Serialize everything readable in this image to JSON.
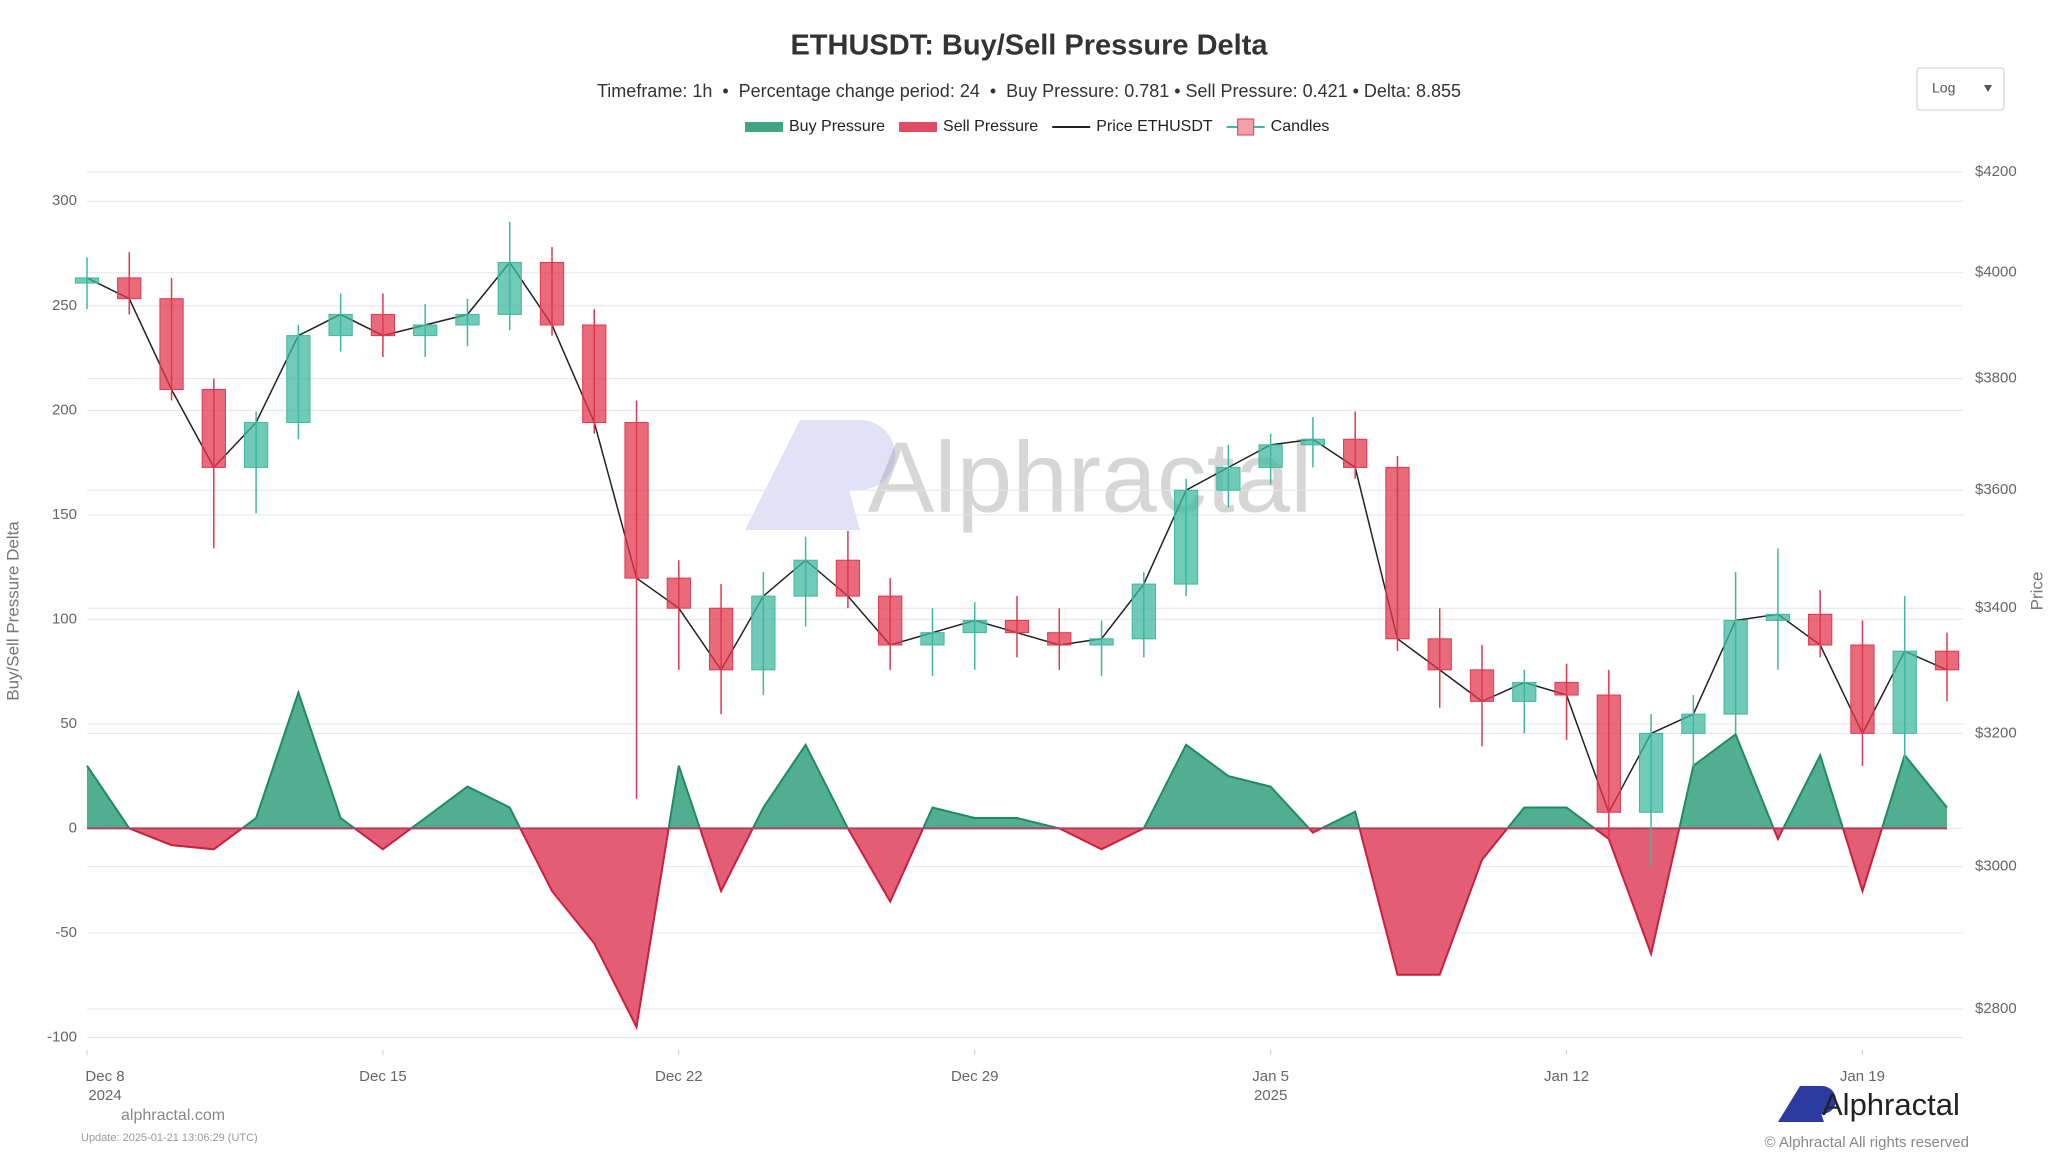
{
  "chart_data": {
    "type": "delta-area",
    "title": "ETHUSDT: Buy/Sell Pressure Delta",
    "subtitle": "Timeframe: 1h  •  Percentage change period: 24  •  Buy Pressure: 0.781 • Sell Pressure: 0.421 • Delta: 8.855",
    "y_label": "Buy/Sell Pressure Delta",
    "y2_label": "Price",
    "scale_menu": "Log",
    "y2_log": true,
    "grid": true,
    "watermark": "Alphractal",
    "brand": "Alphractal",
    "site": "alphractal.com",
    "update": "Update: 2025-01-21 13:06:29 (UTC)",
    "copyright": "© Alphractal All rights reserved",
    "legend": [
      {
        "name": "Buy Pressure",
        "color": "#3fa584"
      },
      {
        "name": "Sell Pressure",
        "color": "#e04b65"
      }
    ],
    "x": [
      "2024-12-08",
      "2024-12-09",
      "2024-12-10",
      "2024-12-11",
      "2024-12-12",
      "2024-12-13",
      "2024-12-14",
      "2024-12-15",
      "2024-12-16",
      "2024-12-17",
      "2024-12-18",
      "2024-12-19",
      "2024-12-20",
      "2024-12-21",
      "2024-12-22",
      "2024-12-23",
      "2024-12-24",
      "2024-12-25",
      "2024-12-26",
      "2024-12-27",
      "2024-12-28",
      "2024-12-29",
      "2024-12-30",
      "2024-12-31",
      "2025-01-01",
      "2025-01-02",
      "2025-01-03",
      "2025-01-04",
      "2025-01-05",
      "2025-01-06",
      "2025-01-07",
      "2025-01-08",
      "2025-01-09",
      "2025-01-10",
      "2025-01-11",
      "2025-01-12",
      "2025-01-13",
      "2025-01-14",
      "2025-01-15",
      "2025-01-16",
      "2025-01-17",
      "2025-01-18",
      "2025-01-19",
      "2025-01-20",
      "2025-01-21"
    ],
    "xlim": [
      "2024-12-08",
      "2025-01-21"
    ],
    "xticks": [
      {
        "value": "2024-12-08",
        "label": "Dec 8",
        "year": "2024"
      },
      {
        "value": "2024-12-15",
        "label": "Dec 15"
      },
      {
        "value": "2024-12-22",
        "label": "Dec 22"
      },
      {
        "value": "2024-12-29",
        "label": "Dec 29"
      },
      {
        "value": "2025-01-05",
        "label": "Jan 5",
        "year": "2025"
      },
      {
        "value": "2025-01-12",
        "label": "Jan 12"
      },
      {
        "value": "2025-01-19",
        "label": "Jan 19"
      }
    ],
    "delta": [
      30,
      0,
      -8,
      -10,
      5,
      65,
      5,
      -10,
      5,
      20,
      10,
      -30,
      -55,
      -95,
      30,
      -30,
      10,
      40,
      0,
      -35,
      10,
      5,
      5,
      0,
      -10,
      0,
      40,
      25,
      20,
      -2,
      8,
      -70,
      -70,
      -15,
      10,
      10,
      -5,
      -60,
      30,
      45,
      -5,
      35,
      -30,
      35,
      10
    ],
    "ylim": [
      -106,
      314
    ],
    "yticks": [
      -100,
      -50,
      0,
      50,
      100,
      150,
      200,
      250,
      300
    ],
    "price": {
      "name": "Price ETHUSDT",
      "color": "#222222",
      "axis": "y2",
      "values": [
        3990,
        3950,
        3780,
        3640,
        3720,
        3880,
        3920,
        3880,
        3900,
        3920,
        4020,
        3900,
        3720,
        3450,
        3400,
        3300,
        3420,
        3480,
        3420,
        3340,
        3360,
        3380,
        3360,
        3340,
        3350,
        3440,
        3600,
        3640,
        3680,
        3690,
        3640,
        3350,
        3300,
        3250,
        3280,
        3260,
        3080,
        3200,
        3230,
        3380,
        3390,
        3340,
        3200,
        3330,
        3300
      ]
    },
    "candles": {
      "name": "Candles",
      "up_color": "#3fb8a0",
      "down_color": "#e0384f",
      "axis": "y2",
      "open": [
        3980,
        3990,
        3950,
        3780,
        3640,
        3720,
        3880,
        3920,
        3880,
        3900,
        3920,
        4020,
        3900,
        3720,
        3450,
        3400,
        3300,
        3420,
        3480,
        3420,
        3340,
        3360,
        3380,
        3360,
        3340,
        3350,
        3440,
        3600,
        3640,
        3680,
        3690,
        3640,
        3350,
        3300,
        3250,
        3280,
        3260,
        3080,
        3200,
        3230,
        3380,
        3390,
        3340,
        3200,
        3330
      ],
      "high": [
        4030,
        4040,
        3990,
        3800,
        3740,
        3900,
        3960,
        3960,
        3940,
        3950,
        4100,
        4050,
        3930,
        3760,
        3480,
        3440,
        3460,
        3520,
        3530,
        3450,
        3400,
        3410,
        3420,
        3400,
        3380,
        3460,
        3620,
        3680,
        3700,
        3730,
        3740,
        3660,
        3400,
        3340,
        3300,
        3310,
        3300,
        3230,
        3260,
        3460,
        3500,
        3430,
        3380,
        3420,
        3360
      ],
      "low": [
        3930,
        3920,
        3760,
        3500,
        3560,
        3690,
        3850,
        3840,
        3840,
        3860,
        3890,
        3880,
        3700,
        3100,
        3300,
        3230,
        3260,
        3370,
        3400,
        3300,
        3290,
        3300,
        3320,
        3300,
        3290,
        3320,
        3420,
        3570,
        3610,
        3640,
        3620,
        3330,
        3240,
        3180,
        3200,
        3190,
        3040,
        3000,
        3150,
        3200,
        3300,
        3320,
        3150,
        3100,
        3250
      ]
    },
    "y2lim": [
      2745,
      4200
    ],
    "y2ticks": [
      {
        "value": 2800,
        "label": "$2800"
      },
      {
        "value": 3000,
        "label": "$3000"
      },
      {
        "value": 3200,
        "label": "$3200"
      },
      {
        "value": 3400,
        "label": "$3400"
      },
      {
        "value": 3600,
        "label": "$3600"
      },
      {
        "value": 3800,
        "label": "$3800"
      },
      {
        "value": 4000,
        "label": "$4000"
      },
      {
        "value": 4200,
        "label": "$4200"
      }
    ]
  }
}
